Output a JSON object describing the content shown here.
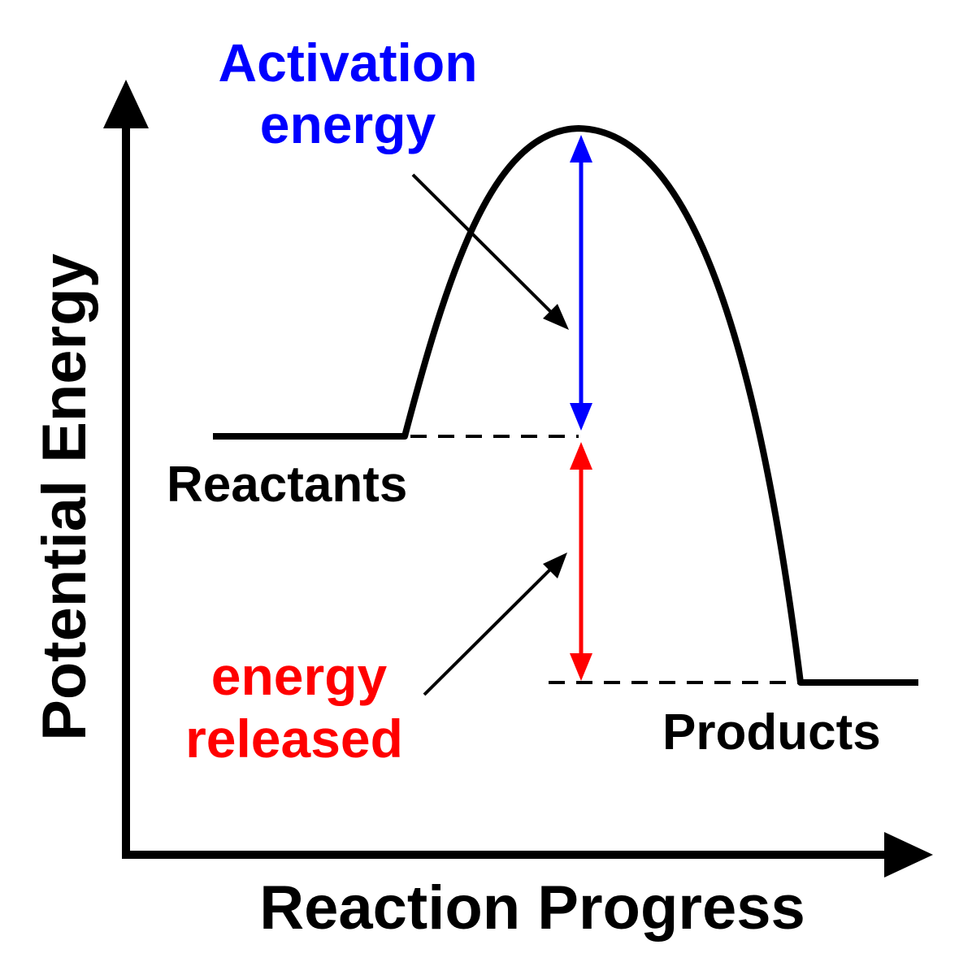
{
  "axes": {
    "y_label": "Potential Energy",
    "x_label": "Reaction Progress"
  },
  "labels": {
    "reactants": "Reactants",
    "products": "Products",
    "activation_line1": "Activation",
    "activation_line2": "energy",
    "released_line1": "energy",
    "released_line2": "released"
  },
  "colors": {
    "curve": "#000000",
    "activation": "#0000ff",
    "released": "#ff0000"
  }
}
